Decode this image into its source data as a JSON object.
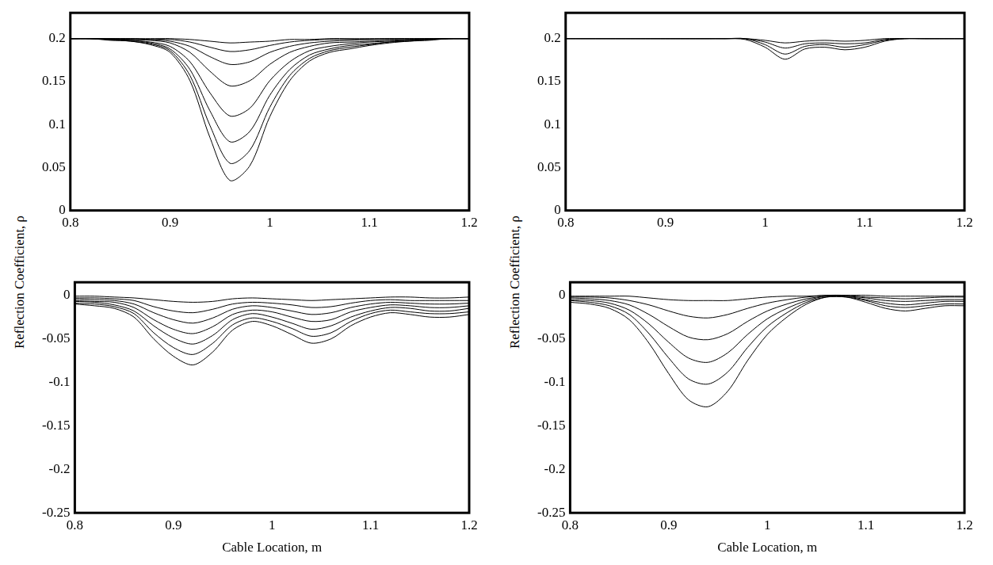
{
  "chart_data": [
    {
      "type": "line",
      "color": "#000000",
      "y_label": "Reflection Coefficient, ρ",
      "x": [
        0.8,
        0.82,
        0.84,
        0.86,
        0.88,
        0.9,
        0.92,
        0.94,
        0.96,
        0.98,
        1.0,
        1.02,
        1.04,
        1.06,
        1.08,
        1.1,
        1.12,
        1.14,
        1.16,
        1.18,
        1.2
      ],
      "xlim": [
        0.8,
        1.2
      ],
      "xticks": [
        0.8,
        0.9,
        1,
        1.1,
        1.2
      ],
      "ylim": [
        0,
        0.23
      ],
      "yticks": [
        0,
        0.05,
        0.1,
        0.15,
        0.2
      ],
      "grid": false,
      "series": [
        {
          "values": [
            0.2,
            0.2,
            0.2,
            0.2,
            0.2,
            0.2,
            0.199,
            0.197,
            0.195,
            0.196,
            0.197,
            0.199,
            0.199,
            0.2,
            0.2,
            0.2,
            0.2,
            0.2,
            0.2,
            0.2,
            0.2
          ]
        },
        {
          "values": [
            0.2,
            0.2,
            0.2,
            0.2,
            0.199,
            0.199,
            0.196,
            0.19,
            0.185,
            0.187,
            0.192,
            0.196,
            0.198,
            0.199,
            0.199,
            0.199,
            0.2,
            0.2,
            0.2,
            0.2,
            0.2
          ]
        },
        {
          "values": [
            0.2,
            0.2,
            0.2,
            0.199,
            0.199,
            0.197,
            0.191,
            0.179,
            0.17,
            0.173,
            0.184,
            0.191,
            0.195,
            0.197,
            0.198,
            0.199,
            0.199,
            0.199,
            0.2,
            0.2,
            0.2
          ]
        },
        {
          "values": [
            0.2,
            0.2,
            0.199,
            0.199,
            0.198,
            0.195,
            0.184,
            0.162,
            0.145,
            0.151,
            0.17,
            0.184,
            0.191,
            0.195,
            0.196,
            0.197,
            0.198,
            0.199,
            0.199,
            0.2,
            0.2
          ]
        },
        {
          "values": [
            0.2,
            0.2,
            0.199,
            0.198,
            0.196,
            0.191,
            0.173,
            0.137,
            0.11,
            0.119,
            0.151,
            0.173,
            0.186,
            0.191,
            0.194,
            0.196,
            0.197,
            0.198,
            0.199,
            0.2,
            0.2
          ]
        },
        {
          "values": [
            0.2,
            0.2,
            0.199,
            0.198,
            0.195,
            0.188,
            0.164,
            0.116,
            0.08,
            0.092,
            0.134,
            0.164,
            0.181,
            0.188,
            0.192,
            0.194,
            0.196,
            0.198,
            0.199,
            0.2,
            0.2
          ]
        },
        {
          "values": [
            0.2,
            0.2,
            0.199,
            0.197,
            0.194,
            0.186,
            0.157,
            0.099,
            0.055,
            0.07,
            0.12,
            0.157,
            0.177,
            0.186,
            0.19,
            0.193,
            0.196,
            0.197,
            0.199,
            0.2,
            0.2
          ]
        },
        {
          "values": [
            0.2,
            0.2,
            0.198,
            0.197,
            0.193,
            0.184,
            0.151,
            0.085,
            0.035,
            0.052,
            0.109,
            0.151,
            0.174,
            0.184,
            0.188,
            0.192,
            0.195,
            0.197,
            0.198,
            0.2,
            0.2
          ]
        }
      ]
    },
    {
      "type": "line",
      "color": "#000000",
      "y_label": "Reflection Coefficient, ρ",
      "x": [
        0.8,
        0.82,
        0.84,
        0.86,
        0.88,
        0.9,
        0.92,
        0.94,
        0.96,
        0.98,
        1.0,
        1.02,
        1.04,
        1.06,
        1.08,
        1.1,
        1.12,
        1.14,
        1.16,
        1.18,
        1.2
      ],
      "xlim": [
        0.8,
        1.2
      ],
      "xticks": [
        0.8,
        0.9,
        1,
        1.1,
        1.2
      ],
      "ylim": [
        0,
        0.23
      ],
      "yticks": [
        0,
        0.05,
        0.1,
        0.15,
        0.2
      ],
      "grid": false,
      "series": [
        {
          "values": [
            0.2,
            0.2,
            0.2,
            0.2,
            0.2,
            0.2,
            0.2,
            0.2,
            0.2,
            0.199,
            0.19,
            0.176,
            0.188,
            0.19,
            0.187,
            0.19,
            0.197,
            0.2,
            0.2,
            0.2,
            0.2
          ]
        },
        {
          "values": [
            0.2,
            0.2,
            0.2,
            0.2,
            0.2,
            0.2,
            0.2,
            0.2,
            0.2,
            0.2,
            0.193,
            0.182,
            0.191,
            0.193,
            0.19,
            0.193,
            0.198,
            0.2,
            0.2,
            0.2,
            0.2
          ]
        },
        {
          "values": [
            0.2,
            0.2,
            0.2,
            0.2,
            0.2,
            0.2,
            0.2,
            0.2,
            0.2,
            0.2,
            0.196,
            0.189,
            0.194,
            0.195,
            0.194,
            0.195,
            0.199,
            0.2,
            0.2,
            0.2,
            0.2
          ]
        },
        {
          "values": [
            0.2,
            0.2,
            0.2,
            0.2,
            0.2,
            0.2,
            0.2,
            0.2,
            0.2,
            0.2,
            0.198,
            0.195,
            0.197,
            0.198,
            0.197,
            0.198,
            0.2,
            0.2,
            0.2,
            0.2,
            0.2
          ]
        }
      ]
    },
    {
      "type": "line",
      "color": "#000000",
      "x_label": "Cable Location, m",
      "x": [
        0.8,
        0.82,
        0.84,
        0.86,
        0.88,
        0.9,
        0.92,
        0.94,
        0.96,
        0.98,
        1.0,
        1.02,
        1.04,
        1.06,
        1.08,
        1.1,
        1.12,
        1.14,
        1.16,
        1.18,
        1.2
      ],
      "xlim": [
        0.8,
        1.2
      ],
      "xticks": [
        0.8,
        0.9,
        1,
        1.1,
        1.2
      ],
      "ylim": [
        -0.25,
        0.015
      ],
      "yticks": [
        -0.25,
        -0.2,
        -0.15,
        -0.1,
        -0.05,
        0
      ],
      "grid": false,
      "series": [
        {
          "values": [
            -0.01,
            -0.012,
            -0.015,
            -0.025,
            -0.05,
            -0.07,
            -0.08,
            -0.065,
            -0.04,
            -0.03,
            -0.035,
            -0.045,
            -0.055,
            -0.05,
            -0.035,
            -0.025,
            -0.02,
            -0.022,
            -0.025,
            -0.025,
            -0.022
          ]
        },
        {
          "values": [
            -0.009,
            -0.01,
            -0.013,
            -0.021,
            -0.043,
            -0.06,
            -0.068,
            -0.055,
            -0.034,
            -0.026,
            -0.03,
            -0.038,
            -0.047,
            -0.043,
            -0.03,
            -0.021,
            -0.017,
            -0.019,
            -0.021,
            -0.021,
            -0.019
          ]
        },
        {
          "values": [
            -0.007,
            -0.008,
            -0.011,
            -0.018,
            -0.035,
            -0.049,
            -0.056,
            -0.046,
            -0.028,
            -0.021,
            -0.025,
            -0.032,
            -0.039,
            -0.035,
            -0.025,
            -0.018,
            -0.014,
            -0.015,
            -0.018,
            -0.018,
            -0.015
          ]
        },
        {
          "values": [
            -0.006,
            -0.007,
            -0.008,
            -0.014,
            -0.028,
            -0.039,
            -0.044,
            -0.036,
            -0.022,
            -0.017,
            -0.019,
            -0.025,
            -0.03,
            -0.028,
            -0.019,
            -0.014,
            -0.011,
            -0.012,
            -0.014,
            -0.014,
            -0.012
          ]
        },
        {
          "values": [
            -0.004,
            -0.005,
            -0.006,
            -0.01,
            -0.02,
            -0.028,
            -0.032,
            -0.026,
            -0.016,
            -0.012,
            -0.014,
            -0.018,
            -0.022,
            -0.02,
            -0.014,
            -0.01,
            -0.008,
            -0.009,
            -0.01,
            -0.01,
            -0.009
          ]
        },
        {
          "values": [
            -0.003,
            -0.003,
            -0.004,
            -0.006,
            -0.013,
            -0.018,
            -0.02,
            -0.016,
            -0.01,
            -0.008,
            -0.009,
            -0.011,
            -0.014,
            -0.013,
            -0.009,
            -0.006,
            -0.005,
            -0.006,
            -0.006,
            -0.006,
            -0.006
          ]
        },
        {
          "values": [
            -0.001,
            -0.001,
            -0.002,
            -0.003,
            -0.005,
            -0.007,
            -0.008,
            -0.007,
            -0.004,
            -0.003,
            -0.004,
            -0.005,
            -0.006,
            -0.005,
            -0.004,
            -0.003,
            -0.002,
            -0.002,
            -0.003,
            -0.003,
            -0.002
          ]
        }
      ]
    },
    {
      "type": "line",
      "color": "#000000",
      "x_label": "Cable Location, m",
      "x": [
        0.8,
        0.82,
        0.84,
        0.86,
        0.88,
        0.9,
        0.92,
        0.94,
        0.96,
        0.98,
        1.0,
        1.02,
        1.04,
        1.06,
        1.08,
        1.1,
        1.12,
        1.14,
        1.16,
        1.18,
        1.2
      ],
      "xlim": [
        0.8,
        1.2
      ],
      "xticks": [
        0.8,
        0.9,
        1,
        1.1,
        1.2
      ],
      "ylim": [
        -0.25,
        0.015
      ],
      "yticks": [
        -0.25,
        -0.2,
        -0.15,
        -0.1,
        -0.05,
        0
      ],
      "grid": false,
      "series": [
        {
          "values": [
            -0.008,
            -0.01,
            -0.015,
            -0.028,
            -0.055,
            -0.09,
            -0.12,
            -0.128,
            -0.11,
            -0.075,
            -0.045,
            -0.025,
            -0.01,
            -0.002,
            -0.002,
            -0.008,
            -0.015,
            -0.018,
            -0.015,
            -0.012,
            -0.012
          ]
        },
        {
          "values": [
            -0.006,
            -0.008,
            -0.012,
            -0.022,
            -0.044,
            -0.072,
            -0.096,
            -0.102,
            -0.088,
            -0.06,
            -0.036,
            -0.02,
            -0.008,
            -0.002,
            -0.002,
            -0.006,
            -0.012,
            -0.014,
            -0.012,
            -0.01,
            -0.01
          ]
        },
        {
          "values": [
            -0.005,
            -0.006,
            -0.009,
            -0.017,
            -0.033,
            -0.054,
            -0.072,
            -0.077,
            -0.066,
            -0.045,
            -0.027,
            -0.015,
            -0.006,
            -0.001,
            -0.001,
            -0.005,
            -0.009,
            -0.011,
            -0.009,
            -0.007,
            -0.007
          ]
        },
        {
          "values": [
            -0.003,
            -0.004,
            -0.006,
            -0.011,
            -0.022,
            -0.036,
            -0.048,
            -0.051,
            -0.044,
            -0.03,
            -0.018,
            -0.01,
            -0.004,
            -0.001,
            -0.001,
            -0.003,
            -0.006,
            -0.007,
            -0.006,
            -0.005,
            -0.005
          ]
        },
        {
          "values": [
            -0.002,
            -0.002,
            -0.003,
            -0.006,
            -0.011,
            -0.018,
            -0.024,
            -0.026,
            -0.022,
            -0.015,
            -0.009,
            -0.005,
            -0.002,
            0,
            0,
            -0.002,
            -0.003,
            -0.004,
            -0.003,
            -0.002,
            -0.002
          ]
        },
        {
          "values": [
            -0.001,
            -0.001,
            -0.001,
            -0.001,
            -0.003,
            -0.005,
            -0.006,
            -0.006,
            -0.006,
            -0.004,
            -0.002,
            -0.001,
            -0.001,
            0,
            0,
            0,
            -0.001,
            -0.001,
            -0.001,
            -0.001,
            -0.001
          ]
        }
      ]
    }
  ]
}
